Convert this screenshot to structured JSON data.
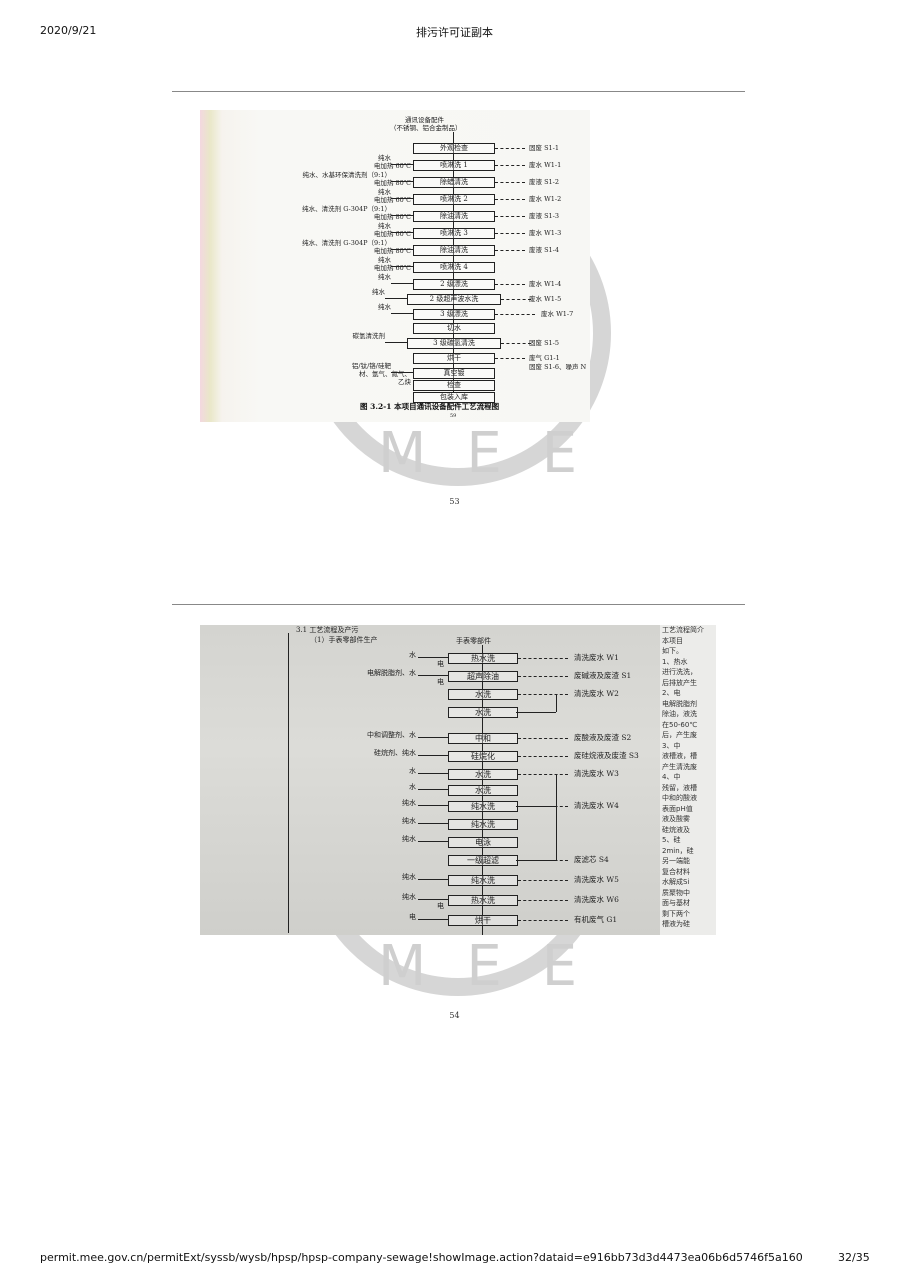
{
  "header": {
    "date": "2020/9/21",
    "title": "排污许可证副本"
  },
  "footer": {
    "url": "permit.mee.gov.cn/permitExt/syssb/wysb/hpsp/hpsp-company-sewage!showImage.action?dataid=e916bb73d3d4473ea06b6d5746f5a160",
    "page": "32/35"
  },
  "watermark": {
    "text": "MEE",
    "color": "#d6d6d6"
  },
  "pages": [
    {
      "page_number": "53",
      "figure": {
        "top_label": [
          "通讯设备配件",
          "（不锈钢、铝合金制品）"
        ],
        "steps": [
          {
            "box": "外观检查",
            "input": [],
            "output": "固废 S1-1"
          },
          {
            "box": "喷淋洗 1",
            "input": [
              "纯水",
              "电加热 60℃"
            ],
            "output": "废水 W1-1"
          },
          {
            "box": "除蜡清洗",
            "input": [
              "纯水、水基环保清洗剂（9:1）",
              "电加热 80℃"
            ],
            "output": "废液 S1-2"
          },
          {
            "box": "喷淋洗 2",
            "input": [
              "纯水",
              "电加热 60℃"
            ],
            "output": "废水 W1-2"
          },
          {
            "box": "除油清洗",
            "input": [
              "纯水、清洗剂 G-304P（9:1）",
              "电加热 80℃"
            ],
            "output": "废液 S1-3"
          },
          {
            "box": "喷淋洗 3",
            "input": [
              "纯水",
              "电加热 60℃"
            ],
            "output": "废水 W1-3"
          },
          {
            "box": "除油清洗",
            "input": [
              "纯水、清洗剂 G-304P（9:1）",
              "电加热 80℃"
            ],
            "output": "废液 S1-4"
          },
          {
            "box": "喷淋洗 4",
            "input": [
              "纯水",
              "电加热 60℃"
            ],
            "output": ""
          },
          {
            "box": "2 级漂洗",
            "input": [
              "纯水"
            ],
            "output": "废水 W1-4"
          },
          {
            "box": "2 级超声波水洗",
            "input": [
              "纯水"
            ],
            "output": "废水 W1-5"
          },
          {
            "box": "3 级漂洗",
            "input": [
              "纯水"
            ],
            "output": "废水 W1-7"
          },
          {
            "box": "切水",
            "input": [],
            "output": ""
          },
          {
            "box": "3 级碳氢清洗",
            "input": [
              "碳氢清洗剂"
            ],
            "output": "固废 S1-5"
          },
          {
            "box": "烘干",
            "input": [],
            "output": "废气 G1-1",
            "output2": "固废 S1-6、噪声 N"
          },
          {
            "box": "真空镀",
            "input": [
              "铝/钛/铬/硅靶",
              "材、氩气、氮气、",
              "乙炔"
            ],
            "output": ""
          },
          {
            "box": "检查",
            "input": [],
            "output": ""
          },
          {
            "box": "包装入库",
            "input": [],
            "output": ""
          }
        ],
        "caption": "图 3.2-1    本项目通讯设备配件工艺流程图",
        "inner_page": "59"
      }
    },
    {
      "page_number": "54",
      "figure": {
        "section": "3.1 工艺流程及产污",
        "subsection": "（1）手表零部件生产",
        "top_label": "手表零部件",
        "steps": [
          {
            "box": "热水洗",
            "input": [
              "水",
              "电"
            ],
            "output": "清洗废水 W1"
          },
          {
            "box": "超声除油",
            "input": [
              "电解脱脂剂、水",
              "电"
            ],
            "output": "废碱液及废渣 S1"
          },
          {
            "box": "水洗",
            "input": [],
            "output": "清洗废水 W2"
          },
          {
            "box": "水洗",
            "input": [],
            "output": ""
          },
          {
            "box": "中和",
            "input": [
              "中和调整剂、水"
            ],
            "output": "废酸液及废渣 S2"
          },
          {
            "box": "硅烷化",
            "input": [
              "硅烷剂、纯水"
            ],
            "output": "废硅烷液及废渣 S3"
          },
          {
            "box": "水洗",
            "input": [
              "水"
            ],
            "output": "清洗废水 W3"
          },
          {
            "box": "水洗",
            "input": [
              "水"
            ],
            "output": ""
          },
          {
            "box": "纯水洗",
            "input": [
              "纯水"
            ],
            "output": "清洗废水 W4"
          },
          {
            "box": "纯水洗",
            "input": [
              "纯水"
            ],
            "output": ""
          },
          {
            "box": "电泳",
            "input": [
              "纯水"
            ],
            "output": ""
          },
          {
            "box": "一级超滤",
            "input": [],
            "output": "废滤芯 S4"
          },
          {
            "box": "纯水洗",
            "input": [
              "纯水"
            ],
            "output": "清洗废水 W5"
          },
          {
            "box": "热水洗",
            "input": [
              "纯水",
              "电"
            ],
            "output": "清洗废水 W6"
          },
          {
            "box": "烘干",
            "input": [
              "电"
            ],
            "output": "有机废气 G1"
          }
        ],
        "side_text": [
          "工艺流程简介",
          "本项目",
          "如下。",
          "1、热水",
          "进行洗洗，",
          "后排放产生",
          "2、电",
          "电解脱脂剂",
          "除油，液洗",
          "在50-60℃",
          "后，产生废",
          "3、中",
          "液槽液，槽",
          "产生清洗废",
          "4、中",
          "残留，液槽",
          "中和的酸液",
          "表面pH值",
          "液及酸雾",
          "硅烷液及",
          "5、硅",
          "2min，硅",
          "另一端能",
          "复合材料",
          "水解成Si",
          "质聚物中",
          "面与基材",
          "剩下两个",
          "槽液为硅"
        ]
      }
    }
  ]
}
